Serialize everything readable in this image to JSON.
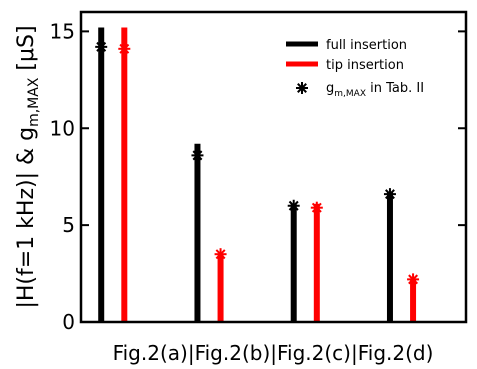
{
  "chart_data": {
    "type": "bar",
    "categories": [
      "Fig.2(a)",
      "Fig.2(b)",
      "Fig.2(c)",
      "Fig.2(d)"
    ],
    "category_separator": "|",
    "series": [
      {
        "name": "full insertion",
        "color": "#000000",
        "values": [
          15.2,
          9.2,
          6.1,
          6.7
        ]
      },
      {
        "name": "tip insertion",
        "color": "#ff0000",
        "values": [
          15.2,
          3.5,
          6.1,
          2.2
        ]
      }
    ],
    "markers": {
      "name": "g",
      "name_sub": "m,MAX",
      "name_suffix": " in Tab. II",
      "marker": "asterisk",
      "full_insertion": [
        14.2,
        8.6,
        6.0,
        6.6
      ],
      "tip_insertion": [
        14.1,
        3.5,
        5.9,
        2.2
      ]
    },
    "ylabel": "|H(f=1 kHz)| & g",
    "ylabel_sub": "m,MAX",
    "ylabel_suffix": " [μS]",
    "xlabel": "",
    "ylim": [
      0,
      16
    ],
    "yticks": [
      0,
      5,
      10,
      15
    ],
    "legend_position": "top-right",
    "grid": false
  }
}
